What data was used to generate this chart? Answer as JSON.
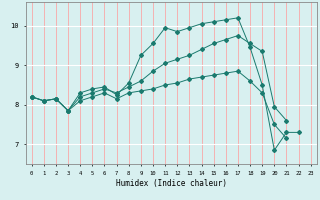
{
  "title": "",
  "xlabel": "Humidex (Indice chaleur)",
  "bg_color": "#d8f0f0",
  "grid_color_major": "#ff9999",
  "grid_color_minor": "#ffffff",
  "line_color": "#1a7a6e",
  "xlim": [
    -0.5,
    23.5
  ],
  "ylim": [
    6.5,
    10.6
  ],
  "xticks": [
    0,
    1,
    2,
    3,
    4,
    5,
    6,
    7,
    8,
    9,
    10,
    11,
    12,
    13,
    14,
    15,
    16,
    17,
    18,
    19,
    20,
    21,
    22,
    23
  ],
  "yticks": [
    7,
    8,
    9,
    10
  ],
  "line1_y": [
    8.2,
    8.1,
    8.15,
    7.85,
    8.3,
    8.4,
    8.45,
    8.25,
    8.55,
    9.25,
    9.55,
    9.95,
    9.85,
    9.95,
    10.05,
    10.1,
    10.15,
    10.2,
    9.45,
    8.5,
    6.85,
    7.3,
    7.3
  ],
  "line2_y": [
    8.2,
    8.1,
    8.15,
    7.85,
    8.2,
    8.3,
    8.4,
    8.3,
    8.45,
    8.6,
    8.85,
    9.05,
    9.15,
    9.25,
    9.4,
    9.55,
    9.65,
    9.75,
    9.55,
    9.35,
    7.95,
    7.6
  ],
  "line3_y": [
    8.2,
    8.1,
    8.15,
    7.85,
    8.1,
    8.2,
    8.3,
    8.15,
    8.3,
    8.35,
    8.4,
    8.5,
    8.55,
    8.65,
    8.7,
    8.75,
    8.8,
    8.85,
    8.6,
    8.3,
    7.5,
    7.15
  ]
}
